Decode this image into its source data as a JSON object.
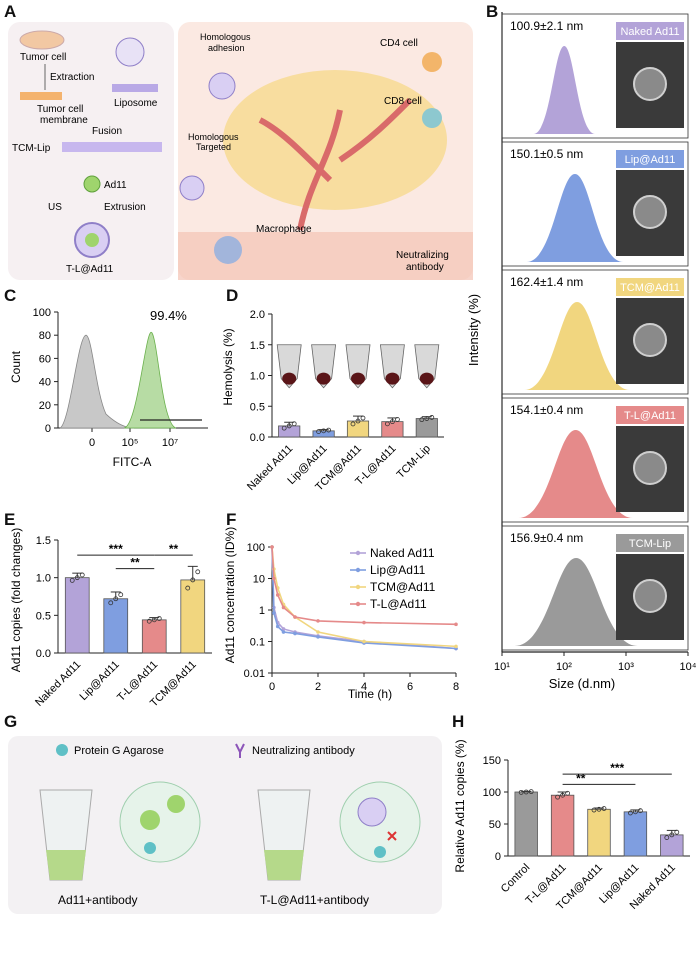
{
  "panels": {
    "A": "A",
    "B": "B",
    "C": "C",
    "D": "D",
    "E": "E",
    "F": "F",
    "G": "G",
    "H": "H"
  },
  "schematic_A": {
    "tumor_cell": "Tumor cell",
    "extraction": "Extraction",
    "membrane_1": "Tumor cell",
    "membrane_2": "membrane",
    "liposome": "Liposome",
    "fusion": "Fusion",
    "tcm_lip": "TCM-Lip",
    "ad11": "Ad11",
    "us": "US",
    "extrusion": "Extrusion",
    "tl_ad11": "T-L@Ad11",
    "homologous_adhesion_1": "Homologous",
    "homologous_adhesion_2": "adhesion",
    "homologous_targeted_1": "Homologous",
    "homologous_targeted_2": "Targeted",
    "cd4": "CD4 cell",
    "cd8": "CD8 cell",
    "macrophage": "Macrophage",
    "neutralizing_1": "Neutralizing",
    "neutralizing_2": "antibody"
  },
  "schematic_G": {
    "legend_protein": "Protein G Agarose",
    "legend_antibody": "Neutralizing antibody",
    "left_caption": "Ad11+antibody",
    "right_caption": "T-L@Ad11+antibody"
  },
  "colors": {
    "naked": "#b3a3d8",
    "lip": "#7f9ee0",
    "tcm": "#f1d67f",
    "tl": "#e58a8a",
    "tcmlip": "#9a9a9a",
    "control": "#9a9a9a",
    "flow_grey": "#c8c8c8",
    "flow_green": "#b7dca4"
  },
  "chart_data": [
    {
      "panel": "B",
      "type": "area",
      "xlabel": "Size (d.nm)",
      "ylabel": "Intensity (%)",
      "x_scale": "log",
      "xlim": [
        10,
        10000
      ],
      "x_ticks": [
        "10¹",
        "10²",
        "10³",
        "10⁴"
      ],
      "series": [
        {
          "name": "Naked Ad11",
          "size": "100.9±2.1 nm",
          "peak": 100.9,
          "color": "#b3a3d8"
        },
        {
          "name": "Lip@Ad11",
          "size": "150.1±0.5 nm",
          "peak": 150.1,
          "color": "#7f9ee0"
        },
        {
          "name": "TCM@Ad11",
          "size": "162.4±1.4 nm",
          "peak": 162.4,
          "color": "#f1d67f"
        },
        {
          "name": "T-L@Ad11",
          "size": "154.1±0.4 nm",
          "peak": 154.1,
          "color": "#e58a8a"
        },
        {
          "name": "TCM-Lip",
          "size": "156.9±0.4 nm",
          "peak": 156.9,
          "color": "#9a9a9a"
        }
      ]
    },
    {
      "panel": "C",
      "type": "area",
      "xlabel": "FITC-A",
      "ylabel": "Count",
      "ylim": [
        0,
        100
      ],
      "y_ticks": [
        0,
        20,
        40,
        60,
        80,
        100
      ],
      "x_ticks": [
        "0",
        "10⁵",
        "10⁷"
      ],
      "annotation": "99.4%"
    },
    {
      "panel": "D",
      "type": "bar",
      "ylabel": "Hemolysis (%)",
      "ylim": [
        0,
        2.0
      ],
      "y_ticks": [
        "0.0",
        "0.5",
        "1.0",
        "1.5",
        "2.0"
      ],
      "categories": [
        "Naked Ad11",
        "Lip@Ad11",
        "TCM@Ad11",
        "T-L@Ad11",
        "TCM-Lip"
      ],
      "values": [
        0.18,
        0.1,
        0.26,
        0.25,
        0.3
      ],
      "errors": [
        0.06,
        0.02,
        0.08,
        0.06,
        0.03
      ]
    },
    {
      "panel": "E",
      "type": "bar",
      "ylabel": "Ad11 copies (fold changes)",
      "ylim": [
        0,
        1.5
      ],
      "y_ticks": [
        "0.0",
        "0.5",
        "1.0",
        "1.5"
      ],
      "categories": [
        "Naked Ad11",
        "Lip@Ad11",
        "T-L@Ad11",
        "TCM@Ad11"
      ],
      "values": [
        1.0,
        0.72,
        0.44,
        0.97
      ],
      "errors": [
        0.06,
        0.09,
        0.03,
        0.18
      ],
      "significance": [
        "***",
        "**",
        "**"
      ]
    },
    {
      "panel": "F",
      "type": "line",
      "xlabel": "Time (h)",
      "ylabel": "Ad11 concentration (ID%)",
      "y_scale": "log",
      "ylim": [
        0.01,
        100
      ],
      "y_ticks": [
        "0.01",
        "0.1",
        "1",
        "10",
        "100"
      ],
      "x_ticks": [
        0,
        2,
        4,
        6,
        8
      ],
      "x": [
        0,
        0.083,
        0.25,
        0.5,
        1,
        2,
        4,
        8
      ],
      "series": [
        {
          "name": "Naked Ad11",
          "values": [
            100,
            1.2,
            0.4,
            0.25,
            0.2,
            0.15,
            0.1,
            0.06
          ]
        },
        {
          "name": "Lip@Ad11",
          "values": [
            100,
            0.8,
            0.3,
            0.2,
            0.18,
            0.14,
            0.09,
            0.06
          ]
        },
        {
          "name": "TCM@Ad11",
          "values": [
            100,
            20,
            5,
            1.5,
            0.6,
            0.2,
            0.1,
            0.07
          ]
        },
        {
          "name": "T-L@Ad11",
          "values": [
            100,
            10,
            3,
            1.2,
            0.6,
            0.45,
            0.4,
            0.35
          ]
        }
      ]
    },
    {
      "panel": "H",
      "type": "bar",
      "ylabel": "Relative Ad11 copies (%)",
      "ylim": [
        0,
        150
      ],
      "y_ticks": [
        0,
        50,
        100,
        150
      ],
      "categories": [
        "Control",
        "T-L@Ad11",
        "TCM@Ad11",
        "Lip@Ad11",
        "Naked Ad11"
      ],
      "values": [
        100,
        95,
        73,
        69,
        33
      ],
      "errors": [
        1,
        5,
        2,
        3,
        7
      ],
      "significance": [
        "***",
        "**"
      ]
    }
  ]
}
